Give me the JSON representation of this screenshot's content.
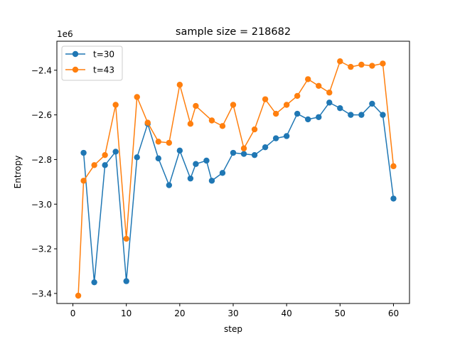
{
  "chart_data": {
    "type": "line",
    "title": "sample size = 218682",
    "xlabel": "step",
    "ylabel": "Entropy",
    "y_multiplier_label": "1e6",
    "xlim": [
      -3,
      63
    ],
    "ylim": [
      -3.445,
      -2.27
    ],
    "x_ticks": [
      0,
      10,
      20,
      30,
      40,
      50,
      60
    ],
    "x_tick_labels": [
      "0",
      "10",
      "20",
      "30",
      "40",
      "50",
      "60"
    ],
    "y_ticks": [
      -3.4,
      -3.2,
      -3.0,
      -2.8,
      -2.6,
      -2.4
    ],
    "y_tick_labels": [
      "−3.4",
      "−3.2",
      "−3.0",
      "−2.8",
      "−2.6",
      "−2.4"
    ],
    "grid": false,
    "legend_position": "upper-left",
    "series": [
      {
        "name": "t=30",
        "color": "#1f77b4",
        "marker": "circle",
        "x": [
          2,
          4,
          6,
          8,
          10,
          12,
          14,
          16,
          18,
          20,
          22,
          23,
          25,
          26,
          28,
          30,
          32,
          34,
          36,
          38,
          40,
          42,
          44,
          46,
          48,
          50,
          52,
          54,
          56,
          58,
          60
        ],
        "y": [
          -2.77,
          -3.35,
          -2.825,
          -2.765,
          -3.345,
          -2.79,
          -2.64,
          -2.795,
          -2.915,
          -2.76,
          -2.885,
          -2.82,
          -2.805,
          -2.895,
          -2.86,
          -2.77,
          -2.775,
          -2.78,
          -2.745,
          -2.705,
          -2.695,
          -2.595,
          -2.62,
          -2.61,
          -2.545,
          -2.57,
          -2.6,
          -2.6,
          -2.55,
          -2.6,
          -2.975
        ]
      },
      {
        "name": "t=43",
        "color": "#ff7f0e",
        "marker": "circle",
        "x": [
          1,
          2,
          4,
          6,
          8,
          10,
          12,
          14,
          16,
          18,
          20,
          22,
          23,
          26,
          28,
          30,
          32,
          34,
          36,
          38,
          40,
          42,
          44,
          46,
          48,
          50,
          52,
          54,
          56,
          58,
          60
        ],
        "y": [
          -3.41,
          -2.895,
          -2.825,
          -2.78,
          -2.555,
          -3.155,
          -2.52,
          -2.635,
          -2.72,
          -2.725,
          -2.465,
          -2.64,
          -2.56,
          -2.625,
          -2.65,
          -2.555,
          -2.75,
          -2.665,
          -2.53,
          -2.595,
          -2.555,
          -2.515,
          -2.44,
          -2.47,
          -2.5,
          -2.36,
          -2.385,
          -2.375,
          -2.38,
          -2.37,
          -2.83
        ]
      }
    ]
  }
}
